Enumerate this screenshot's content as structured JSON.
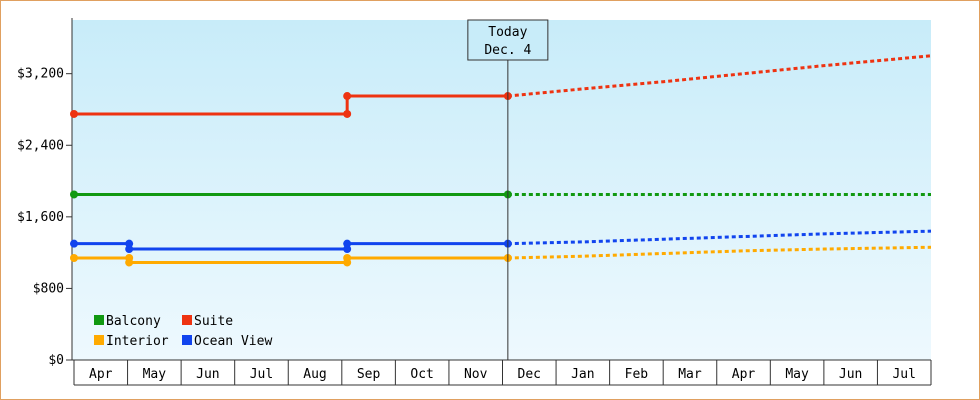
{
  "chart_data": {
    "type": "line",
    "title": "",
    "xlabel": "",
    "ylabel": "",
    "ylim": [
      0,
      3800
    ],
    "yticks": [
      0,
      800,
      1600,
      2400,
      3200
    ],
    "ytick_labels": [
      "$0",
      "$800",
      "$1,600",
      "$2,400",
      "$3,200"
    ],
    "months": [
      "Apr",
      "May",
      "Jun",
      "Jul",
      "Aug",
      "Sep",
      "Oct",
      "Nov",
      "Dec",
      "Jan",
      "Feb",
      "Mar",
      "Apr",
      "May",
      "Jun",
      "Jul"
    ],
    "today": {
      "line1": "Today",
      "line2": "Dec. 4",
      "x": 8.1
    },
    "x_end": 16.0,
    "legend": {
      "placement": "bottom-left"
    },
    "series": [
      {
        "name": "Balcony",
        "color": "#119911",
        "actual": [
          [
            0,
            1850
          ],
          [
            8.1,
            1850
          ]
        ],
        "markers": [
          [
            0,
            1850
          ],
          [
            8.1,
            1850
          ]
        ],
        "projection": [
          [
            8.1,
            1850
          ],
          [
            16.0,
            1850
          ]
        ]
      },
      {
        "name": "Suite",
        "color": "#ee3311",
        "actual": [
          [
            0,
            2750
          ],
          [
            5.1,
            2750
          ],
          [
            5.1,
            2950
          ],
          [
            8.1,
            2950
          ]
        ],
        "markers": [
          [
            0,
            2750
          ],
          [
            5.1,
            2750
          ],
          [
            5.1,
            2950
          ],
          [
            8.1,
            2950
          ]
        ],
        "projection": [
          [
            8.1,
            2950
          ],
          [
            9.5,
            3030
          ],
          [
            11,
            3110
          ],
          [
            12.5,
            3200
          ],
          [
            14,
            3290
          ],
          [
            16.0,
            3400
          ]
        ]
      },
      {
        "name": "Interior",
        "color": "#ffaa00",
        "actual": [
          [
            0,
            1140
          ],
          [
            1.03,
            1140
          ],
          [
            1.03,
            1090
          ],
          [
            5.1,
            1090
          ],
          [
            5.1,
            1140
          ],
          [
            8.1,
            1140
          ]
        ],
        "markers": [
          [
            0,
            1140
          ],
          [
            1.03,
            1140
          ],
          [
            1.03,
            1090
          ],
          [
            5.1,
            1090
          ],
          [
            5.1,
            1140
          ],
          [
            8.1,
            1140
          ]
        ],
        "projection": [
          [
            8.1,
            1140
          ],
          [
            9.5,
            1160
          ],
          [
            11,
            1190
          ],
          [
            12.5,
            1220
          ],
          [
            14,
            1240
          ],
          [
            16.0,
            1260
          ]
        ]
      },
      {
        "name": "Ocean View",
        "color": "#1144ee",
        "actual": [
          [
            0,
            1300
          ],
          [
            1.03,
            1300
          ],
          [
            1.03,
            1240
          ],
          [
            5.1,
            1240
          ],
          [
            5.1,
            1300
          ],
          [
            8.1,
            1300
          ]
        ],
        "markers": [
          [
            0,
            1300
          ],
          [
            1.03,
            1300
          ],
          [
            1.03,
            1240
          ],
          [
            5.1,
            1240
          ],
          [
            5.1,
            1300
          ],
          [
            8.1,
            1300
          ]
        ],
        "projection": [
          [
            8.1,
            1300
          ],
          [
            9.5,
            1320
          ],
          [
            11,
            1350
          ],
          [
            12.5,
            1380
          ],
          [
            14,
            1410
          ],
          [
            16.0,
            1440
          ]
        ]
      }
    ]
  }
}
